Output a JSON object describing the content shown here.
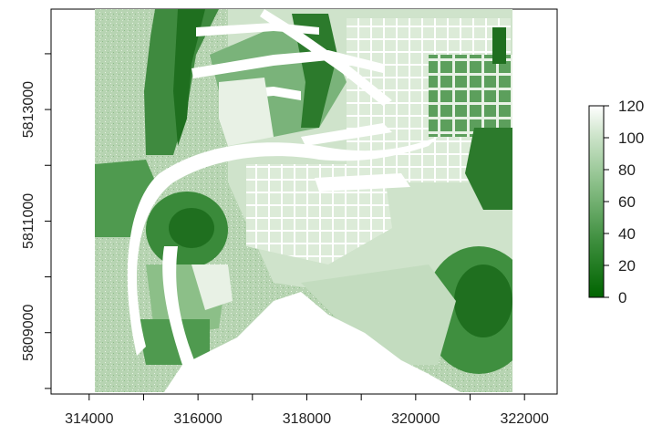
{
  "map": {
    "x_ticks": [
      "314000",
      "316000",
      "318000",
      "320000",
      "322000"
    ],
    "y_ticks": [
      "5809000",
      "5811000",
      "5813000"
    ],
    "x_tick_values": [
      314000,
      316000,
      318000,
      320000,
      322000
    ],
    "y_tick_values": [
      5809000,
      5811000,
      5813000
    ],
    "x_range": [
      313300,
      322600
    ],
    "y_range": [
      5807900,
      5814800
    ]
  },
  "legend": {
    "labels": [
      "0",
      "20",
      "40",
      "60",
      "80",
      "100",
      "120"
    ],
    "values": [
      0,
      20,
      40,
      60,
      80,
      100,
      120
    ],
    "color_low": "#006400",
    "color_high": "#ffffff"
  },
  "colors": {
    "dark_green": "#1f6f1f",
    "mid_green": "#4f9a4f",
    "light_green": "#a9cfa3",
    "pale_green": "#cfe3cb",
    "water": "#ffffff"
  }
}
